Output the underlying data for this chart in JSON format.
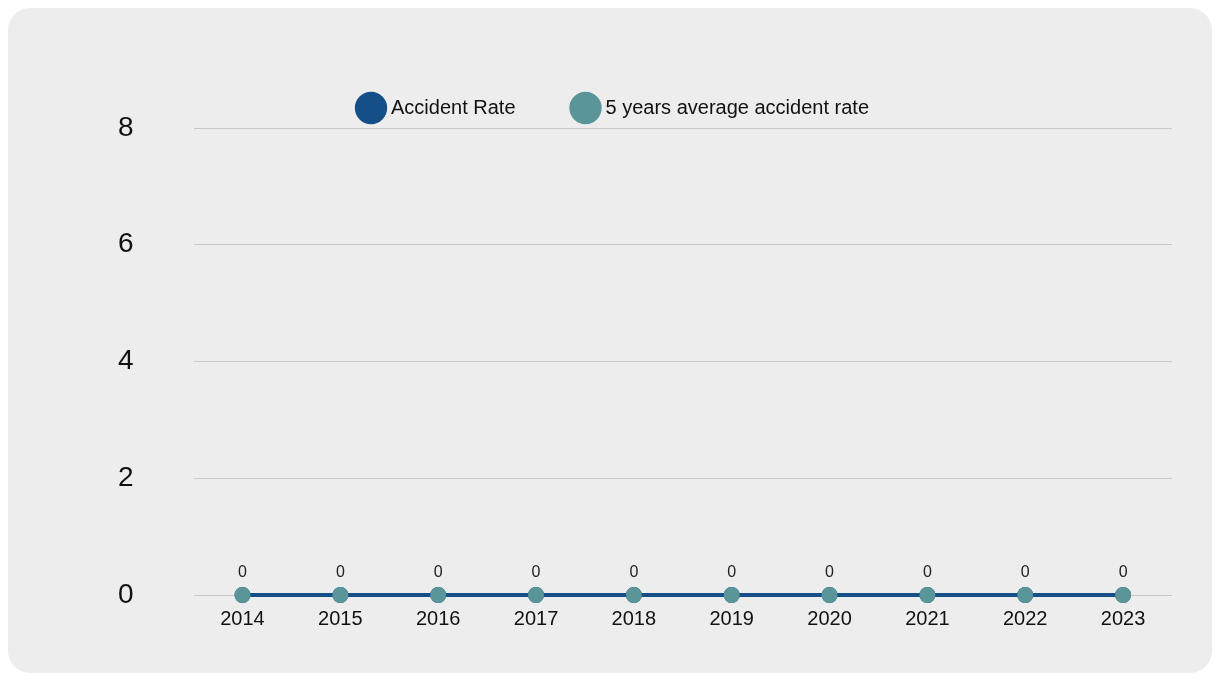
{
  "chart_data": {
    "type": "line",
    "categories": [
      "2014",
      "2015",
      "2016",
      "2017",
      "2018",
      "2019",
      "2020",
      "2021",
      "2022",
      "2023"
    ],
    "series": [
      {
        "name": "Accident Rate",
        "color": "#154f87",
        "values": [
          0,
          0,
          0,
          0,
          0,
          0,
          0,
          0,
          0,
          0
        ],
        "value_labels": [
          "0",
          "0",
          "0",
          "0",
          "0",
          "0",
          "0",
          "0",
          "0",
          "0"
        ]
      },
      {
        "name": "5 years average accident rate",
        "type": "scatter",
        "color": "#5a9599",
        "values": [
          0,
          0,
          0,
          0,
          0,
          0,
          0,
          0,
          0,
          0
        ]
      }
    ],
    "ylim": [
      0,
      8
    ],
    "yticks": [
      0,
      2,
      4,
      6,
      8
    ],
    "grid": "y",
    "legend": "top",
    "marker": "circle",
    "line_style": "solid"
  }
}
